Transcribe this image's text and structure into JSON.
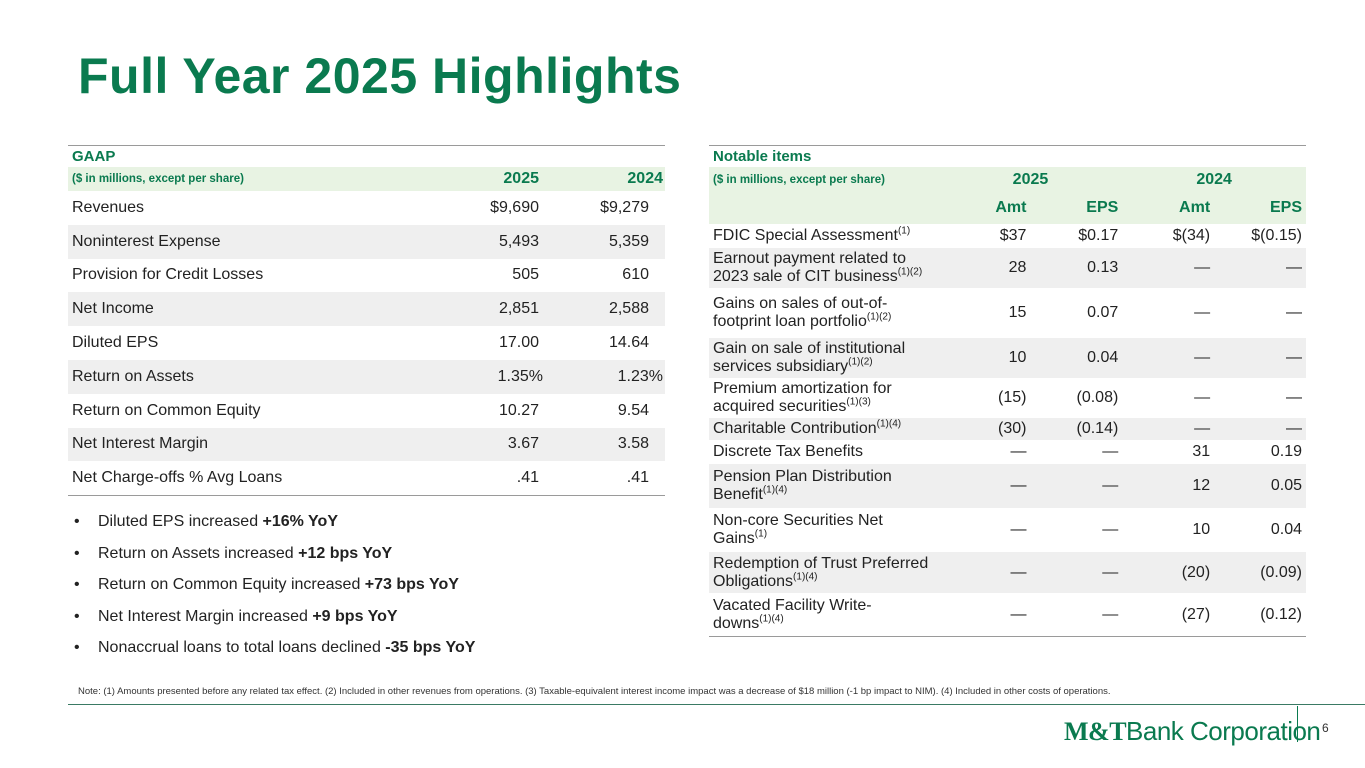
{
  "title": "Full Year 2025 Highlights",
  "gaap": {
    "section_title": "GAAP",
    "header_label": "($ in millions, except per share)",
    "col_2025": "2025",
    "col_2024": "2024",
    "rows": [
      {
        "label": "Revenues",
        "v2025": "$9,690",
        "v2024": "$9,279"
      },
      {
        "label": "Noninterest Expense",
        "v2025": "5,493",
        "v2024": "5,359"
      },
      {
        "label": "Provision for Credit Losses",
        "v2025": "505",
        "v2024": "610"
      },
      {
        "label": "Net Income",
        "v2025": "2,851",
        "v2024": "2,588"
      },
      {
        "label": "Diluted EPS",
        "v2025": "17.00",
        "v2024": "14.64"
      },
      {
        "label": "Return on Assets",
        "v2025": "1.35%",
        "v2024": "1.23%"
      },
      {
        "label": "Return on Common Equity",
        "v2025": "10.27",
        "v2024": "9.54"
      },
      {
        "label": "Net Interest Margin",
        "v2025": "3.67",
        "v2024": "3.58"
      },
      {
        "label": "Net Charge-offs % Avg Loans",
        "v2025": ".41",
        "v2024": ".41"
      }
    ]
  },
  "bullets": [
    {
      "text": "Diluted EPS increased ",
      "bold": "+16% YoY"
    },
    {
      "text": "Return on Assets increased ",
      "bold": "+12 bps YoY"
    },
    {
      "text": "Return on Common Equity increased ",
      "bold": "+73 bps YoY"
    },
    {
      "text": "Net Interest Margin increased ",
      "bold": "+9 bps YoY"
    },
    {
      "text": "Nonaccrual loans to total loans declined ",
      "bold": "-35 bps YoY"
    }
  ],
  "bullet_symbol": "•",
  "notable": {
    "section_title": "Notable items",
    "header_label": "($ in millions, except per share)",
    "col_2025": "2025",
    "col_2024": "2024",
    "sub_amt": "Amt",
    "sub_eps": "EPS",
    "rows": [
      {
        "line1": "FDIC Special Assessment",
        "line2": "",
        "sup": "(1)",
        "a25": "$37",
        "e25": "$0.17",
        "a24": "$(34)",
        "e24": "$(0.15)"
      },
      {
        "line1": "Earnout payment related to",
        "line2": "2023 sale of CIT business",
        "sup": "(1)(2)",
        "a25": "28",
        "e25": "0.13",
        "a24": "—",
        "e24": "—"
      },
      {
        "line1": "Gains on sales of out-of-",
        "line2": "footprint loan portfolio",
        "sup": "(1)(2)",
        "a25": "15",
        "e25": "0.07",
        "a24": "—",
        "e24": "—"
      },
      {
        "line1": "Gain on sale of institutional",
        "line2": "services subsidiary",
        "sup": "(1)(2)",
        "a25": "10",
        "e25": "0.04",
        "a24": "—",
        "e24": "—"
      },
      {
        "line1": "Premium amortization for",
        "line2": "acquired securities",
        "sup": "(1)(3)",
        "a25": "(15)",
        "e25": "(0.08)",
        "a24": "—",
        "e24": "—"
      },
      {
        "line1": "Charitable Contribution",
        "line2": "",
        "sup": "(1)(4)",
        "a25": "(30)",
        "e25": "(0.14)",
        "a24": "—",
        "e24": "—"
      },
      {
        "line1": "Discrete Tax Benefits",
        "line2": "",
        "sup": "",
        "a25": "—",
        "e25": "—",
        "a24": "31",
        "e24": "0.19"
      },
      {
        "line1": "Pension Plan Distribution",
        "line2": "Benefit",
        "sup": "(1)(4)",
        "a25": "—",
        "e25": "—",
        "a24": "12",
        "e24": "0.05"
      },
      {
        "line1": "Non-core Securities Net",
        "line2": "Gains",
        "sup": "(1)",
        "a25": "—",
        "e25": "—",
        "a24": "10",
        "e24": "0.04"
      },
      {
        "line1": "Redemption of Trust Preferred",
        "line2": "Obligations",
        "sup": "(1)(4)",
        "a25": "—",
        "e25": "—",
        "a24": "(20)",
        "e24": "(0.09)"
      },
      {
        "line1": "Vacated Facility Write-",
        "line2": "downs",
        "sup": "(1)(4)",
        "a25": "—",
        "e25": "—",
        "a24": "(27)",
        "e24": "(0.12)"
      }
    ]
  },
  "note": "Note:  (1) Amounts presented before any related tax effect. (2) Included in other revenues from operations. (3) Taxable-equivalent interest income impact was a decrease of $18 million (-1 bp impact to NIM). (4) Included in other costs of operations.",
  "logo": {
    "bold": "M&T",
    "rest": "Bank Corporation"
  },
  "page_number": "6",
  "colors": {
    "brand_green": "#0a7a4f",
    "header_fill": "#e8f3e3",
    "row_alt": "#efefef"
  }
}
